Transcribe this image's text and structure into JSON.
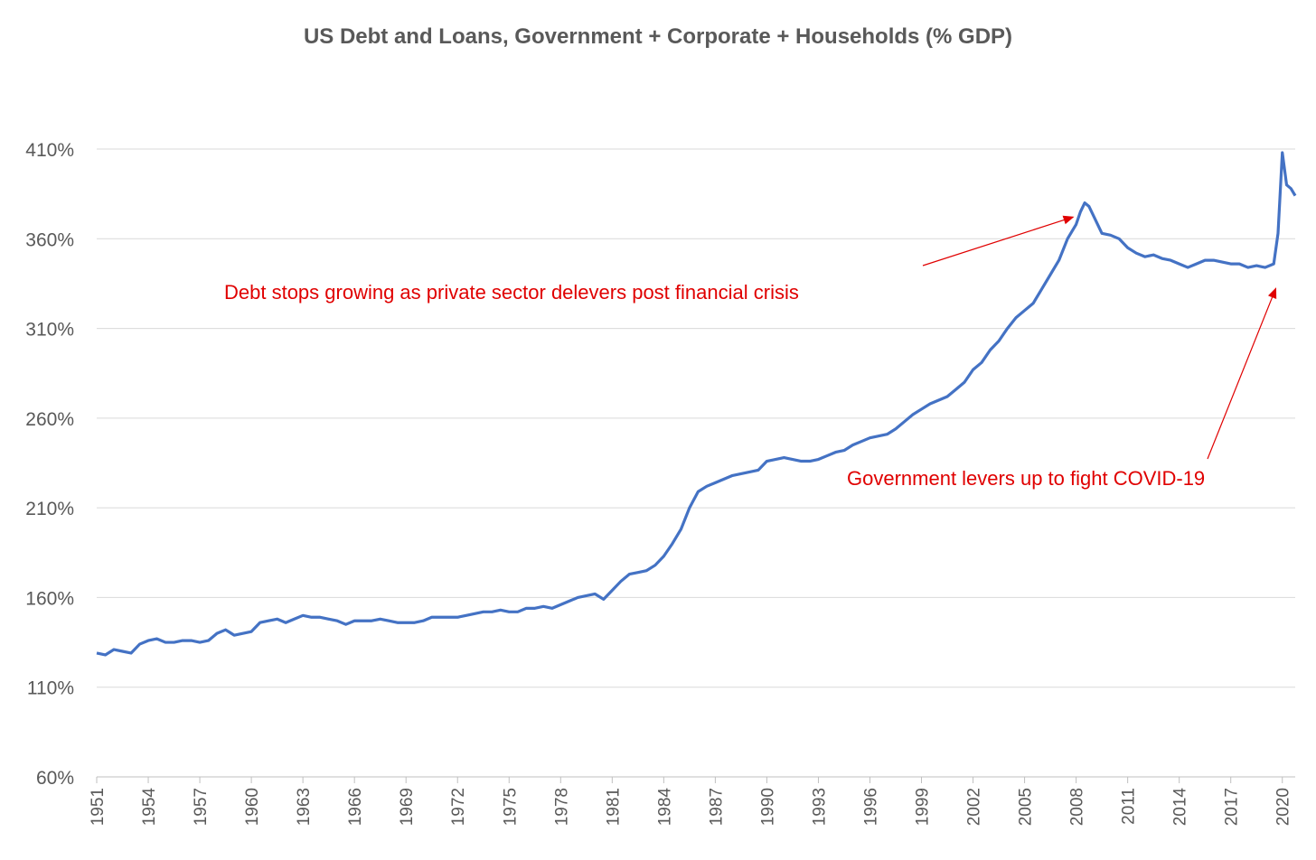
{
  "chart_data": {
    "type": "line",
    "title": "US Debt and Loans, Government + Corporate + Households (% GDP)",
    "xlabel": "",
    "ylabel": "",
    "y_unit": "%",
    "ylim": [
      60,
      410
    ],
    "y_ticks": [
      "60%",
      "110%",
      "160%",
      "210%",
      "260%",
      "310%",
      "360%",
      "410%"
    ],
    "x_ticks": [
      "1951",
      "1954",
      "1957",
      "1960",
      "1963",
      "1966",
      "1969",
      "1972",
      "1975",
      "1978",
      "1981",
      "1984",
      "1987",
      "1990",
      "1993",
      "1996",
      "1999",
      "2002",
      "2005",
      "2008",
      "2011",
      "2014",
      "2017",
      "2020"
    ],
    "xlim": [
      1951,
      2020.75
    ],
    "grid": "horizontal",
    "legend": "none",
    "line_color": "#4472c4",
    "annotation_color": "#e00000",
    "series": [
      {
        "x": [
          1951,
          1951.5,
          1952,
          1952.5,
          1953,
          1953.5,
          1954,
          1954.5,
          1955,
          1955.5,
          1956,
          1956.5,
          1957,
          1957.5,
          1958,
          1958.5,
          1959,
          1959.5,
          1960,
          1960.5,
          1961,
          1961.5,
          1962,
          1962.5,
          1963,
          1963.5,
          1964,
          1964.5,
          1965,
          1965.5,
          1966,
          1966.5,
          1967,
          1967.5,
          1968,
          1968.5,
          1969,
          1969.5,
          1970,
          1970.5,
          1971,
          1971.5,
          1972,
          1972.5,
          1973,
          1973.5,
          1974,
          1974.5,
          1975,
          1975.5,
          1976,
          1976.5,
          1977,
          1977.5,
          1978,
          1978.5,
          1979,
          1979.5,
          1980,
          1980.5,
          1981,
          1981.5,
          1982,
          1982.5,
          1983,
          1983.5,
          1984,
          1984.5,
          1985,
          1985.5,
          1986,
          1986.5,
          1987,
          1987.5,
          1988,
          1988.5,
          1989,
          1989.5,
          1990,
          1990.5,
          1991,
          1991.5,
          1992,
          1992.5,
          1993,
          1993.5,
          1994,
          1994.5,
          1995,
          1995.5,
          1996,
          1996.5,
          1997,
          1997.5,
          1998,
          1998.5,
          1999,
          1999.5,
          2000,
          2000.5,
          2001,
          2001.5,
          2002,
          2002.5,
          2003,
          2003.5,
          2004,
          2004.5,
          2005,
          2005.5,
          2006,
          2006.5,
          2007,
          2007.5,
          2008,
          2008.25,
          2008.5,
          2008.75,
          2009,
          2009.5,
          2010,
          2010.5,
          2011,
          2011.5,
          2012,
          2012.5,
          2013,
          2013.5,
          2014,
          2014.5,
          2015,
          2015.5,
          2016,
          2016.5,
          2017,
          2017.5,
          2018,
          2018.5,
          2019,
          2019.5,
          2019.75,
          2020,
          2020.25,
          2020.5,
          2020.75
        ],
        "y": [
          129,
          128,
          131,
          130,
          129,
          134,
          136,
          137,
          135,
          135,
          136,
          136,
          135,
          136,
          140,
          142,
          139,
          140,
          141,
          146,
          147,
          148,
          146,
          148,
          150,
          149,
          149,
          148,
          147,
          145,
          147,
          147,
          147,
          148,
          147,
          146,
          146,
          146,
          147,
          149,
          149,
          149,
          149,
          150,
          151,
          152,
          152,
          153,
          152,
          152,
          154,
          154,
          155,
          154,
          156,
          158,
          160,
          161,
          162,
          159,
          164,
          169,
          173,
          174,
          175,
          178,
          183,
          190,
          198,
          210,
          219,
          222,
          224,
          226,
          228,
          229,
          230,
          231,
          236,
          237,
          238,
          237,
          236,
          236,
          237,
          239,
          241,
          242,
          245,
          247,
          249,
          250,
          251,
          254,
          258,
          262,
          265,
          268,
          270,
          272,
          276,
          280,
          287,
          291,
          298,
          303,
          310,
          316,
          320,
          324,
          332,
          340,
          348,
          360,
          368,
          375,
          380,
          378,
          373,
          363,
          362,
          360,
          355,
          352,
          350,
          351,
          349,
          348,
          346,
          344,
          346,
          348,
          348,
          347,
          346,
          346,
          344,
          345,
          344,
          346,
          363,
          408,
          390,
          388,
          384
        ]
      }
    ],
    "annotations": [
      {
        "text": "Debt stops growing as private sector delevers post financial crisis",
        "arrow_to": [
          2008,
          373
        ]
      },
      {
        "text": "Government levers up to fight COVID-19",
        "arrow_to": [
          2019.5,
          335
        ]
      }
    ]
  }
}
